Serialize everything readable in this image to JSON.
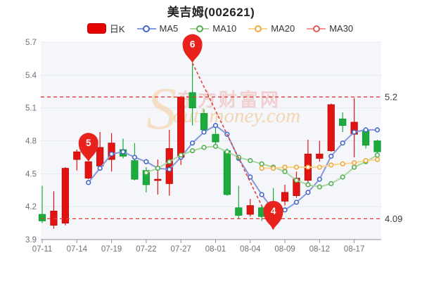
{
  "title": "美吉姆(002621)",
  "legend": [
    {
      "id": "dayk",
      "label": "日K",
      "type": "rect",
      "color": "#e60000",
      "border": "#bb0000"
    },
    {
      "id": "ma5",
      "label": "MA5",
      "type": "line",
      "line": "#8699da",
      "ring": "#4466c8"
    },
    {
      "id": "ma10",
      "label": "MA10",
      "type": "line",
      "line": "#abd79e",
      "ring": "#4fae4f"
    },
    {
      "id": "ma20",
      "label": "MA20",
      "type": "line",
      "line": "#f8d48e",
      "ring": "#f0a83a"
    },
    {
      "id": "ma30",
      "label": "MA30",
      "type": "line",
      "line": "#f09a9a",
      "ring": "#e05a5a"
    }
  ],
  "watermark": {
    "swoosh": "S",
    "latin": "outhmoney.com",
    "chinese": "东方财富网"
  },
  "colors": {
    "up": "#e21310",
    "up_border": "#b50b09",
    "down": "#1cab3c",
    "down_border": "#0e9a2e",
    "markline": "#e23a34",
    "markline_label": "#3c3c3c",
    "pin": "#e8231d",
    "pin_text": "#ffffff",
    "axis_text": "#6e7079",
    "axis_line": "#8b909a",
    "grid_line": "#e4e8f0",
    "plot_bg": "#f4f6fa",
    "watermark_orange": "#f6cd9e",
    "watermark_pink": "#f2c6c6"
  },
  "chart_data": {
    "type": "candlestick",
    "title": "美吉姆(002621)",
    "ylim": [
      3.9,
      5.7
    ],
    "grid": true,
    "legend_position": "top",
    "y_ticks": [
      {
        "v": 5.7,
        "label": "5.7"
      },
      {
        "v": 5.4,
        "label": "5.4"
      },
      {
        "v": 5.1,
        "label": "5.1"
      },
      {
        "v": 4.8,
        "label": "4.8"
      },
      {
        "v": 4.5,
        "label": "4.5"
      },
      {
        "v": 4.2,
        "label": "4.2"
      },
      {
        "v": 3.9,
        "label": "3.9"
      }
    ],
    "x_ticks": [
      {
        "i": 0,
        "label": "07-11"
      },
      {
        "i": 3,
        "label": "07-14"
      },
      {
        "i": 6,
        "label": "07-19"
      },
      {
        "i": 9,
        "label": "07-22"
      },
      {
        "i": 12,
        "label": "07-27"
      },
      {
        "i": 15,
        "label": "08-01"
      },
      {
        "i": 18,
        "label": "08-04"
      },
      {
        "i": 21,
        "label": "08-09"
      },
      {
        "i": 24,
        "label": "08-12"
      },
      {
        "i": 27,
        "label": "08-17"
      }
    ],
    "candles": [
      {
        "date": "07-11",
        "open": 4.13,
        "close": 4.07,
        "high": 4.39,
        "low": 4.05,
        "dir": "down"
      },
      {
        "date": "07-12",
        "open": 4.03,
        "close": 4.16,
        "high": 4.34,
        "low": 4.0,
        "dir": "up"
      },
      {
        "date": "07-13",
        "open": 4.05,
        "close": 4.55,
        "high": 4.56,
        "low": 4.03,
        "dir": "up"
      },
      {
        "date": "07-14",
        "open": 4.63,
        "close": 4.7,
        "high": 4.72,
        "low": 4.53,
        "dir": "up"
      },
      {
        "date": "07-15",
        "open": 4.46,
        "close": 4.61,
        "high": 4.61,
        "low": 4.45,
        "dir": "up"
      },
      {
        "date": "07-18",
        "open": 4.57,
        "close": 4.74,
        "high": 4.88,
        "low": 4.53,
        "dir": "up"
      },
      {
        "date": "07-19",
        "open": 4.63,
        "close": 4.78,
        "high": 4.87,
        "low": 4.52,
        "dir": "up"
      },
      {
        "date": "07-20",
        "open": 4.72,
        "close": 4.66,
        "high": 4.82,
        "low": 4.64,
        "dir": "down"
      },
      {
        "date": "07-21",
        "open": 4.62,
        "close": 4.45,
        "high": 4.78,
        "low": 4.44,
        "dir": "down"
      },
      {
        "date": "07-22",
        "open": 4.53,
        "close": 4.4,
        "high": 4.56,
        "low": 4.33,
        "dir": "down"
      },
      {
        "date": "07-25",
        "open": 4.45,
        "close": 4.45,
        "high": 4.63,
        "low": 4.31,
        "dir": "up"
      },
      {
        "date": "07-26",
        "open": 4.41,
        "close": 4.73,
        "high": 4.9,
        "low": 4.3,
        "dir": "up"
      },
      {
        "date": "07-27",
        "open": 4.65,
        "close": 5.2,
        "high": 5.21,
        "low": 4.58,
        "dir": "up"
      },
      {
        "date": "07-28",
        "open": 5.24,
        "close": 5.1,
        "high": 5.51,
        "low": 4.94,
        "dir": "down"
      },
      {
        "date": "07-29",
        "open": 5.05,
        "close": 4.9,
        "high": 5.09,
        "low": 4.88,
        "dir": "down"
      },
      {
        "date": "08-01",
        "open": 4.86,
        "close": 4.79,
        "high": 4.94,
        "low": 4.76,
        "dir": "down"
      },
      {
        "date": "08-02",
        "open": 4.71,
        "close": 4.31,
        "high": 4.73,
        "low": 4.3,
        "dir": "down"
      },
      {
        "date": "08-03",
        "open": 4.19,
        "close": 4.12,
        "high": 4.39,
        "low": 4.09,
        "dir": "down"
      },
      {
        "date": "08-04",
        "open": 4.13,
        "close": 4.21,
        "high": 4.27,
        "low": 4.11,
        "dir": "up"
      },
      {
        "date": "08-05",
        "open": 4.19,
        "close": 4.11,
        "high": 4.21,
        "low": 4.07,
        "dir": "down"
      },
      {
        "date": "08-08",
        "open": 4.18,
        "close": 4.08,
        "high": 4.37,
        "low": 3.99,
        "dir": "down"
      },
      {
        "date": "08-09",
        "open": 4.25,
        "close": 4.33,
        "high": 4.4,
        "low": 4.21,
        "dir": "up"
      },
      {
        "date": "08-10",
        "open": 4.3,
        "close": 4.46,
        "high": 4.52,
        "low": 4.28,
        "dir": "up"
      },
      {
        "date": "08-11",
        "open": 4.44,
        "close": 4.68,
        "high": 4.81,
        "low": 4.41,
        "dir": "up"
      },
      {
        "date": "08-12",
        "open": 4.64,
        "close": 4.68,
        "high": 4.8,
        "low": 4.61,
        "dir": "up"
      },
      {
        "date": "08-15",
        "open": 4.71,
        "close": 5.13,
        "high": 5.14,
        "low": 4.7,
        "dir": "up"
      },
      {
        "date": "08-16",
        "open": 5.0,
        "close": 4.94,
        "high": 5.06,
        "low": 4.88,
        "dir": "down"
      },
      {
        "date": "08-17",
        "open": 4.86,
        "close": 4.97,
        "high": 5.19,
        "low": 4.65,
        "dir": "up"
      },
      {
        "date": "08-18",
        "open": 4.9,
        "close": 4.76,
        "high": 4.91,
        "low": 4.73,
        "dir": "down"
      },
      {
        "date": "08-19",
        "open": 4.8,
        "close": 4.7,
        "high": 4.81,
        "low": 4.67,
        "dir": "down"
      }
    ],
    "series": [
      {
        "name": "MA5",
        "start": 4,
        "line": "#8699da",
        "ring": "#4466c8",
        "values": [
          4.42,
          4.55,
          4.68,
          4.7,
          4.65,
          4.61,
          4.55,
          4.54,
          4.65,
          4.78,
          4.88,
          4.94,
          4.86,
          4.64,
          4.47,
          4.31,
          4.17,
          4.17,
          4.24,
          4.33,
          4.45,
          4.66,
          4.78,
          4.88,
          4.9,
          4.9
        ]
      },
      {
        "name": "MA10",
        "start": 9,
        "line": "#abd79e",
        "ring": "#4fae4f",
        "values": [
          4.51,
          4.55,
          4.61,
          4.67,
          4.71,
          4.74,
          4.75,
          4.7,
          4.65,
          4.62,
          4.59,
          4.56,
          4.52,
          4.44,
          4.4,
          4.38,
          4.41,
          4.47,
          4.56,
          4.61,
          4.67
        ]
      },
      {
        "name": "MA20",
        "start": 19,
        "line": "#f8d48e",
        "ring": "#f0a83a",
        "values": [
          4.55,
          4.55,
          4.56,
          4.56,
          4.56,
          4.56,
          4.58,
          4.59,
          4.6,
          4.62,
          4.63
        ]
      },
      {
        "name": "MA30",
        "start": 29,
        "line": "#f09a9a",
        "ring": "#e05a5a",
        "values": []
      }
    ],
    "markers": [
      {
        "label": "6",
        "day": 13,
        "value": 5.51
      },
      {
        "label": "5",
        "day": 4,
        "value": 4.61
      },
      {
        "label": "4",
        "day": 20,
        "value": 3.99
      }
    ],
    "marklines": [
      {
        "value": 5.2,
        "label": "5.2"
      },
      {
        "value": 4.09,
        "label": "4.09"
      }
    ],
    "trendline": {
      "from": {
        "day": 13,
        "value": 5.51
      },
      "to": {
        "day": 20,
        "value": 3.99
      }
    }
  }
}
